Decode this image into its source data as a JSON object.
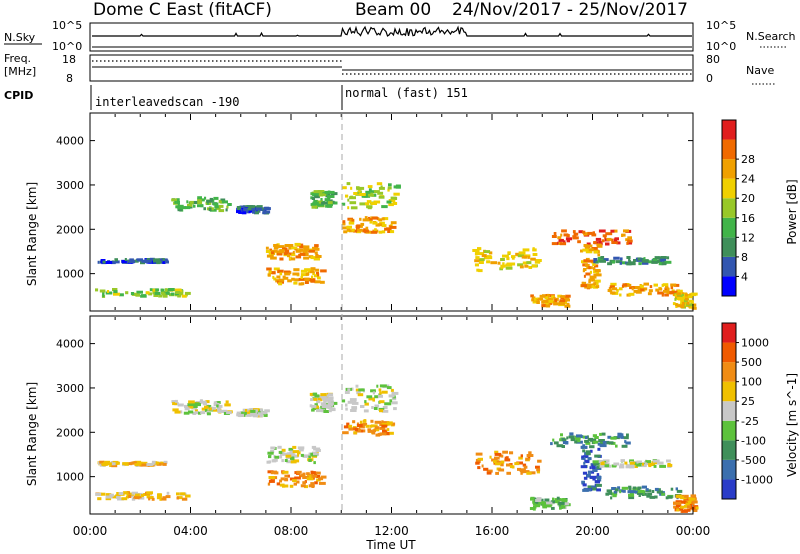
{
  "chart_data": [
    {
      "type": "line",
      "title": "Dome C East (fitACF)",
      "subtitle_beam": "Beam 00",
      "subtitle_date": "24/Nov/2017 - 25/Nov/2017",
      "left_label": "N.Sky",
      "right_label": "N.Search",
      "left_ticks": [
        "10^5",
        "10^0"
      ],
      "right_ticks": [
        "10^5",
        "10^0"
      ]
    },
    {
      "type": "line",
      "left_label_lines": [
        "Freq.",
        "[MHz]"
      ],
      "right_label": "Nave",
      "left_ticks": [
        "18",
        "8"
      ],
      "right_ticks": [
        "80",
        "0"
      ]
    },
    {
      "type": "table",
      "label": "CPID",
      "segments": [
        {
          "start": "00:00",
          "end": "10:00",
          "name": "interleavedscan -190"
        },
        {
          "start": "10:00",
          "end": "24:00",
          "name": "normal (fast) 151"
        }
      ]
    },
    {
      "type": "heatmap",
      "ylabel": "Slant Range [km]",
      "yticks": [
        1000,
        2000,
        3000,
        4000
      ],
      "ylim": [
        180,
        4600
      ],
      "colorbar_label": "Power [dB]",
      "colorbar_ticks": [
        "4",
        "8",
        "12",
        "16",
        "20",
        "24",
        "28"
      ],
      "colorbar_colors": [
        "#0000ff",
        "#3256b0",
        "#3f8f5a",
        "#41b449",
        "#98c828",
        "#f0d000",
        "#f0a000",
        "#f06a00",
        "#e01e1e"
      ],
      "blobs": [
        {
          "t0": 0.2,
          "t1": 3.8,
          "r0": 520,
          "r1": 680,
          "level": 4
        },
        {
          "t0": 0.3,
          "t1": 3.0,
          "r0": 1280,
          "r1": 1360,
          "level": 1
        },
        {
          "t0": 3.2,
          "t1": 5.5,
          "r0": 2450,
          "r1": 2750,
          "level": 3
        },
        {
          "t0": 5.8,
          "t1": 7.0,
          "r0": 2400,
          "r1": 2550,
          "level": 1
        },
        {
          "t0": 7.0,
          "t1": 9.0,
          "r0": 1350,
          "r1": 1700,
          "level": 6
        },
        {
          "t0": 7.0,
          "t1": 9.2,
          "r0": 800,
          "r1": 1150,
          "level": 6
        },
        {
          "t0": 8.7,
          "t1": 9.6,
          "r0": 2500,
          "r1": 2900,
          "level": 3
        },
        {
          "t0": 10.0,
          "t1": 12.2,
          "r0": 2500,
          "r1": 3100,
          "level": 4
        },
        {
          "t0": 10.0,
          "t1": 12.0,
          "r0": 1950,
          "r1": 2300,
          "level": 6
        },
        {
          "t0": 15.2,
          "t1": 17.8,
          "r0": 1100,
          "r1": 1600,
          "level": 5
        },
        {
          "t0": 17.5,
          "t1": 19.0,
          "r0": 300,
          "r1": 550,
          "level": 6
        },
        {
          "t0": 18.3,
          "t1": 21.5,
          "r0": 1700,
          "r1": 2000,
          "level": 7
        },
        {
          "t0": 19.5,
          "t1": 20.2,
          "r0": 700,
          "r1": 1700,
          "level": 6
        },
        {
          "t0": 20.5,
          "t1": 23.4,
          "r0": 550,
          "r1": 800,
          "level": 6
        },
        {
          "t0": 20.0,
          "t1": 23.0,
          "r0": 1250,
          "r1": 1400,
          "level": 2
        },
        {
          "t0": 23.2,
          "t1": 24.0,
          "r0": 250,
          "r1": 600,
          "level": 5
        }
      ]
    },
    {
      "type": "heatmap",
      "ylabel": "Slant Range [km]",
      "yticks": [
        1000,
        2000,
        3000,
        4000
      ],
      "ylim": [
        180,
        4600
      ],
      "xlabel": "Time UT",
      "xticks": [
        "00:00",
        "04:00",
        "08:00",
        "12:00",
        "16:00",
        "20:00",
        "00:00"
      ],
      "xlim": [
        0,
        24
      ],
      "colorbar_label": "Velocity [m s^-1]",
      "colorbar_ticks": [
        "1000",
        "500",
        "100",
        "25",
        "-25",
        "-100",
        "-500",
        "-1000"
      ],
      "colorbar_colors": [
        "#2a3cc8",
        "#3b6fae",
        "#3f8f5a",
        "#5dc23c",
        "#c8c8c8",
        "#f0c000",
        "#f08c14",
        "#f05a00",
        "#e01e1e"
      ],
      "blobs": [
        {
          "t0": 0.2,
          "t1": 3.8,
          "r0": 520,
          "r1": 680,
          "level": 5
        },
        {
          "t0": 0.3,
          "t1": 3.0,
          "r0": 1280,
          "r1": 1360,
          "level": 5
        },
        {
          "t0": 3.2,
          "t1": 5.5,
          "r0": 2450,
          "r1": 2750,
          "level": 4
        },
        {
          "t0": 5.8,
          "t1": 7.0,
          "r0": 2400,
          "r1": 2550,
          "level": 4
        },
        {
          "t0": 7.0,
          "t1": 9.0,
          "r0": 1350,
          "r1": 1700,
          "level": 4
        },
        {
          "t0": 7.0,
          "t1": 9.2,
          "r0": 800,
          "r1": 1150,
          "level": 6
        },
        {
          "t0": 8.7,
          "t1": 9.6,
          "r0": 2500,
          "r1": 2900,
          "level": 4
        },
        {
          "t0": 10.0,
          "t1": 12.2,
          "r0": 2500,
          "r1": 3100,
          "level": 4
        },
        {
          "t0": 10.0,
          "t1": 12.0,
          "r0": 1950,
          "r1": 2300,
          "level": 6
        },
        {
          "t0": 15.2,
          "t1": 17.8,
          "r0": 1100,
          "r1": 1600,
          "level": 6
        },
        {
          "t0": 17.5,
          "t1": 19.0,
          "r0": 300,
          "r1": 550,
          "level": 3
        },
        {
          "t0": 18.3,
          "t1": 21.5,
          "r0": 1700,
          "r1": 2000,
          "level": 2
        },
        {
          "t0": 19.5,
          "t1": 20.2,
          "r0": 700,
          "r1": 1700,
          "level": 1
        },
        {
          "t0": 20.5,
          "t1": 23.4,
          "r0": 550,
          "r1": 800,
          "level": 2
        },
        {
          "t0": 20.0,
          "t1": 23.0,
          "r0": 1250,
          "r1": 1400,
          "level": 4
        },
        {
          "t0": 23.2,
          "t1": 24.0,
          "r0": 250,
          "r1": 600,
          "level": 6
        }
      ]
    }
  ]
}
